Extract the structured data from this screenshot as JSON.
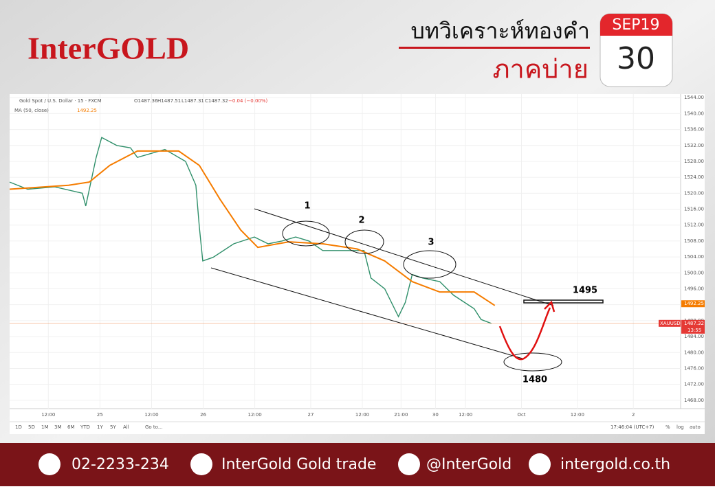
{
  "header": {
    "brand": "InterGOLD",
    "title": "บทวิเคราะห์ทองคำ",
    "subtitle": "ภาคบ่าย",
    "calendar_month": "SEP19",
    "calendar_day": "30"
  },
  "chart_data": {
    "type": "line",
    "symbol": "Gold Spot / U.S. Dollar · 15 · FXCM",
    "ohlc": [
      "O1487.36",
      "H1487.51",
      "L1487.31",
      "C1487.32",
      "−0.04 (−0.00%)"
    ],
    "indicator": "MA (50, close)",
    "indicator_value": "1492.25",
    "series": [
      {
        "name": "XAUUSD",
        "color": "#2f8f6a",
        "x": [
          0,
          4.2,
          10.5,
          16.9,
          17.7,
          20.1,
          21.4,
          24.9,
          28.1,
          29.7,
          36.1,
          40.9,
          43.3,
          44.1,
          44.9,
          47.3,
          52.1,
          56.9,
          60.1,
          63.3,
          66.5,
          69.6,
          72.8,
          77.6,
          82.4,
          84.0,
          87.2,
          90.4,
          92.0,
          93.6,
          96.0,
          100.0,
          103.2,
          108.0,
          109.6,
          112.0
        ],
        "values": [
          1522.8,
          1521,
          1521.6,
          1520,
          1516.8,
          1528.9,
          1534,
          1532,
          1531.4,
          1529,
          1531,
          1528,
          1522,
          1511.6,
          1503,
          1503.9,
          1507.3,
          1509,
          1507.3,
          1508,
          1509,
          1508,
          1505.6,
          1505.6,
          1505.6,
          1498.7,
          1496,
          1489,
          1492.6,
          1499.6,
          1498.7,
          1497.8,
          1494.4,
          1491,
          1488.3,
          1487.3
        ]
      },
      {
        "name": "MA",
        "color": "#f57c00",
        "x": [
          0,
          13.7,
          18.5,
          23.3,
          29.7,
          39.3,
          44.1,
          48.9,
          53.7,
          57.7,
          64.9,
          72.8,
          80.8,
          87.2,
          93.6,
          100.0,
          108.0,
          112.8
        ],
        "values": [
          1521,
          1522,
          1522.8,
          1527,
          1530.6,
          1530.6,
          1527,
          1518.5,
          1510.8,
          1506.4,
          1507.8,
          1507.3,
          1506,
          1503,
          1497.8,
          1495.2,
          1495.2,
          1491.8
        ]
      }
    ],
    "last_price": {
      "value": 1487.32,
      "label": "1487.32",
      "symbol": "XAUUSD",
      "countdown": "13:55"
    },
    "ma_price": {
      "value": 1492.25,
      "label": "1492.25"
    },
    "xlim": [
      0,
      156
    ],
    "xticks": [
      {
        "value": 9,
        "label": "12:00"
      },
      {
        "value": 21,
        "label": "25"
      },
      {
        "value": 33,
        "label": "12:00"
      },
      {
        "value": 45,
        "label": "26"
      },
      {
        "value": 57,
        "label": "12:00"
      },
      {
        "value": 70,
        "label": "27"
      },
      {
        "value": 82,
        "label": "12:00"
      },
      {
        "value": 91,
        "label": "21:00"
      },
      {
        "value": 99,
        "label": "30"
      },
      {
        "value": 106,
        "label": "12:00"
      },
      {
        "value": 119,
        "label": "Oct"
      },
      {
        "value": 132,
        "label": "12:00"
      },
      {
        "value": 145,
        "label": "2"
      }
    ],
    "ylim": [
      1465.9,
      1544.9
    ],
    "yticks": [
      {
        "value": 1468,
        "label": "1468.00"
      },
      {
        "value": 1472,
        "label": "1472.00"
      },
      {
        "value": 1476,
        "label": "1476.00"
      },
      {
        "value": 1480,
        "label": "1480.00"
      },
      {
        "value": 1484,
        "label": "1484.00"
      },
      {
        "value": 1488,
        "label": "1488.00"
      },
      {
        "value": 1492,
        "label": "1492.00"
      },
      {
        "value": 1496,
        "label": "1496.00"
      },
      {
        "value": 1500,
        "label": "1500.00"
      },
      {
        "value": 1504,
        "label": "1504.00"
      },
      {
        "value": 1508,
        "label": "1508.00"
      },
      {
        "value": 1512,
        "label": "1512.00"
      },
      {
        "value": 1516,
        "label": "1516.00"
      },
      {
        "value": 1520,
        "label": "1520.00"
      },
      {
        "value": 1524,
        "label": "1524.00"
      },
      {
        "value": 1528,
        "label": "1528.00"
      },
      {
        "value": 1532,
        "label": "1532.00"
      },
      {
        "value": 1536,
        "label": "1536.00"
      },
      {
        "value": 1540,
        "label": "1540.00"
      },
      {
        "value": 1544,
        "label": "1544.00"
      }
    ],
    "grid": true,
    "annotations": [
      "1",
      "2",
      "3",
      "1495",
      "1480"
    ]
  },
  "toolbar": {
    "ranges": [
      "1D",
      "5D",
      "1M",
      "3M",
      "6M",
      "YTD",
      "1Y",
      "5Y",
      "All"
    ],
    "goto": "Go to...",
    "time": "17:46:04 (UTC+7)",
    "options": [
      "%",
      "log",
      "auto"
    ]
  },
  "footer": {
    "phone": "02-2233-234",
    "facebook": "InterGold Gold trade",
    "line": "@InterGold",
    "web": "intergold.co.th"
  }
}
